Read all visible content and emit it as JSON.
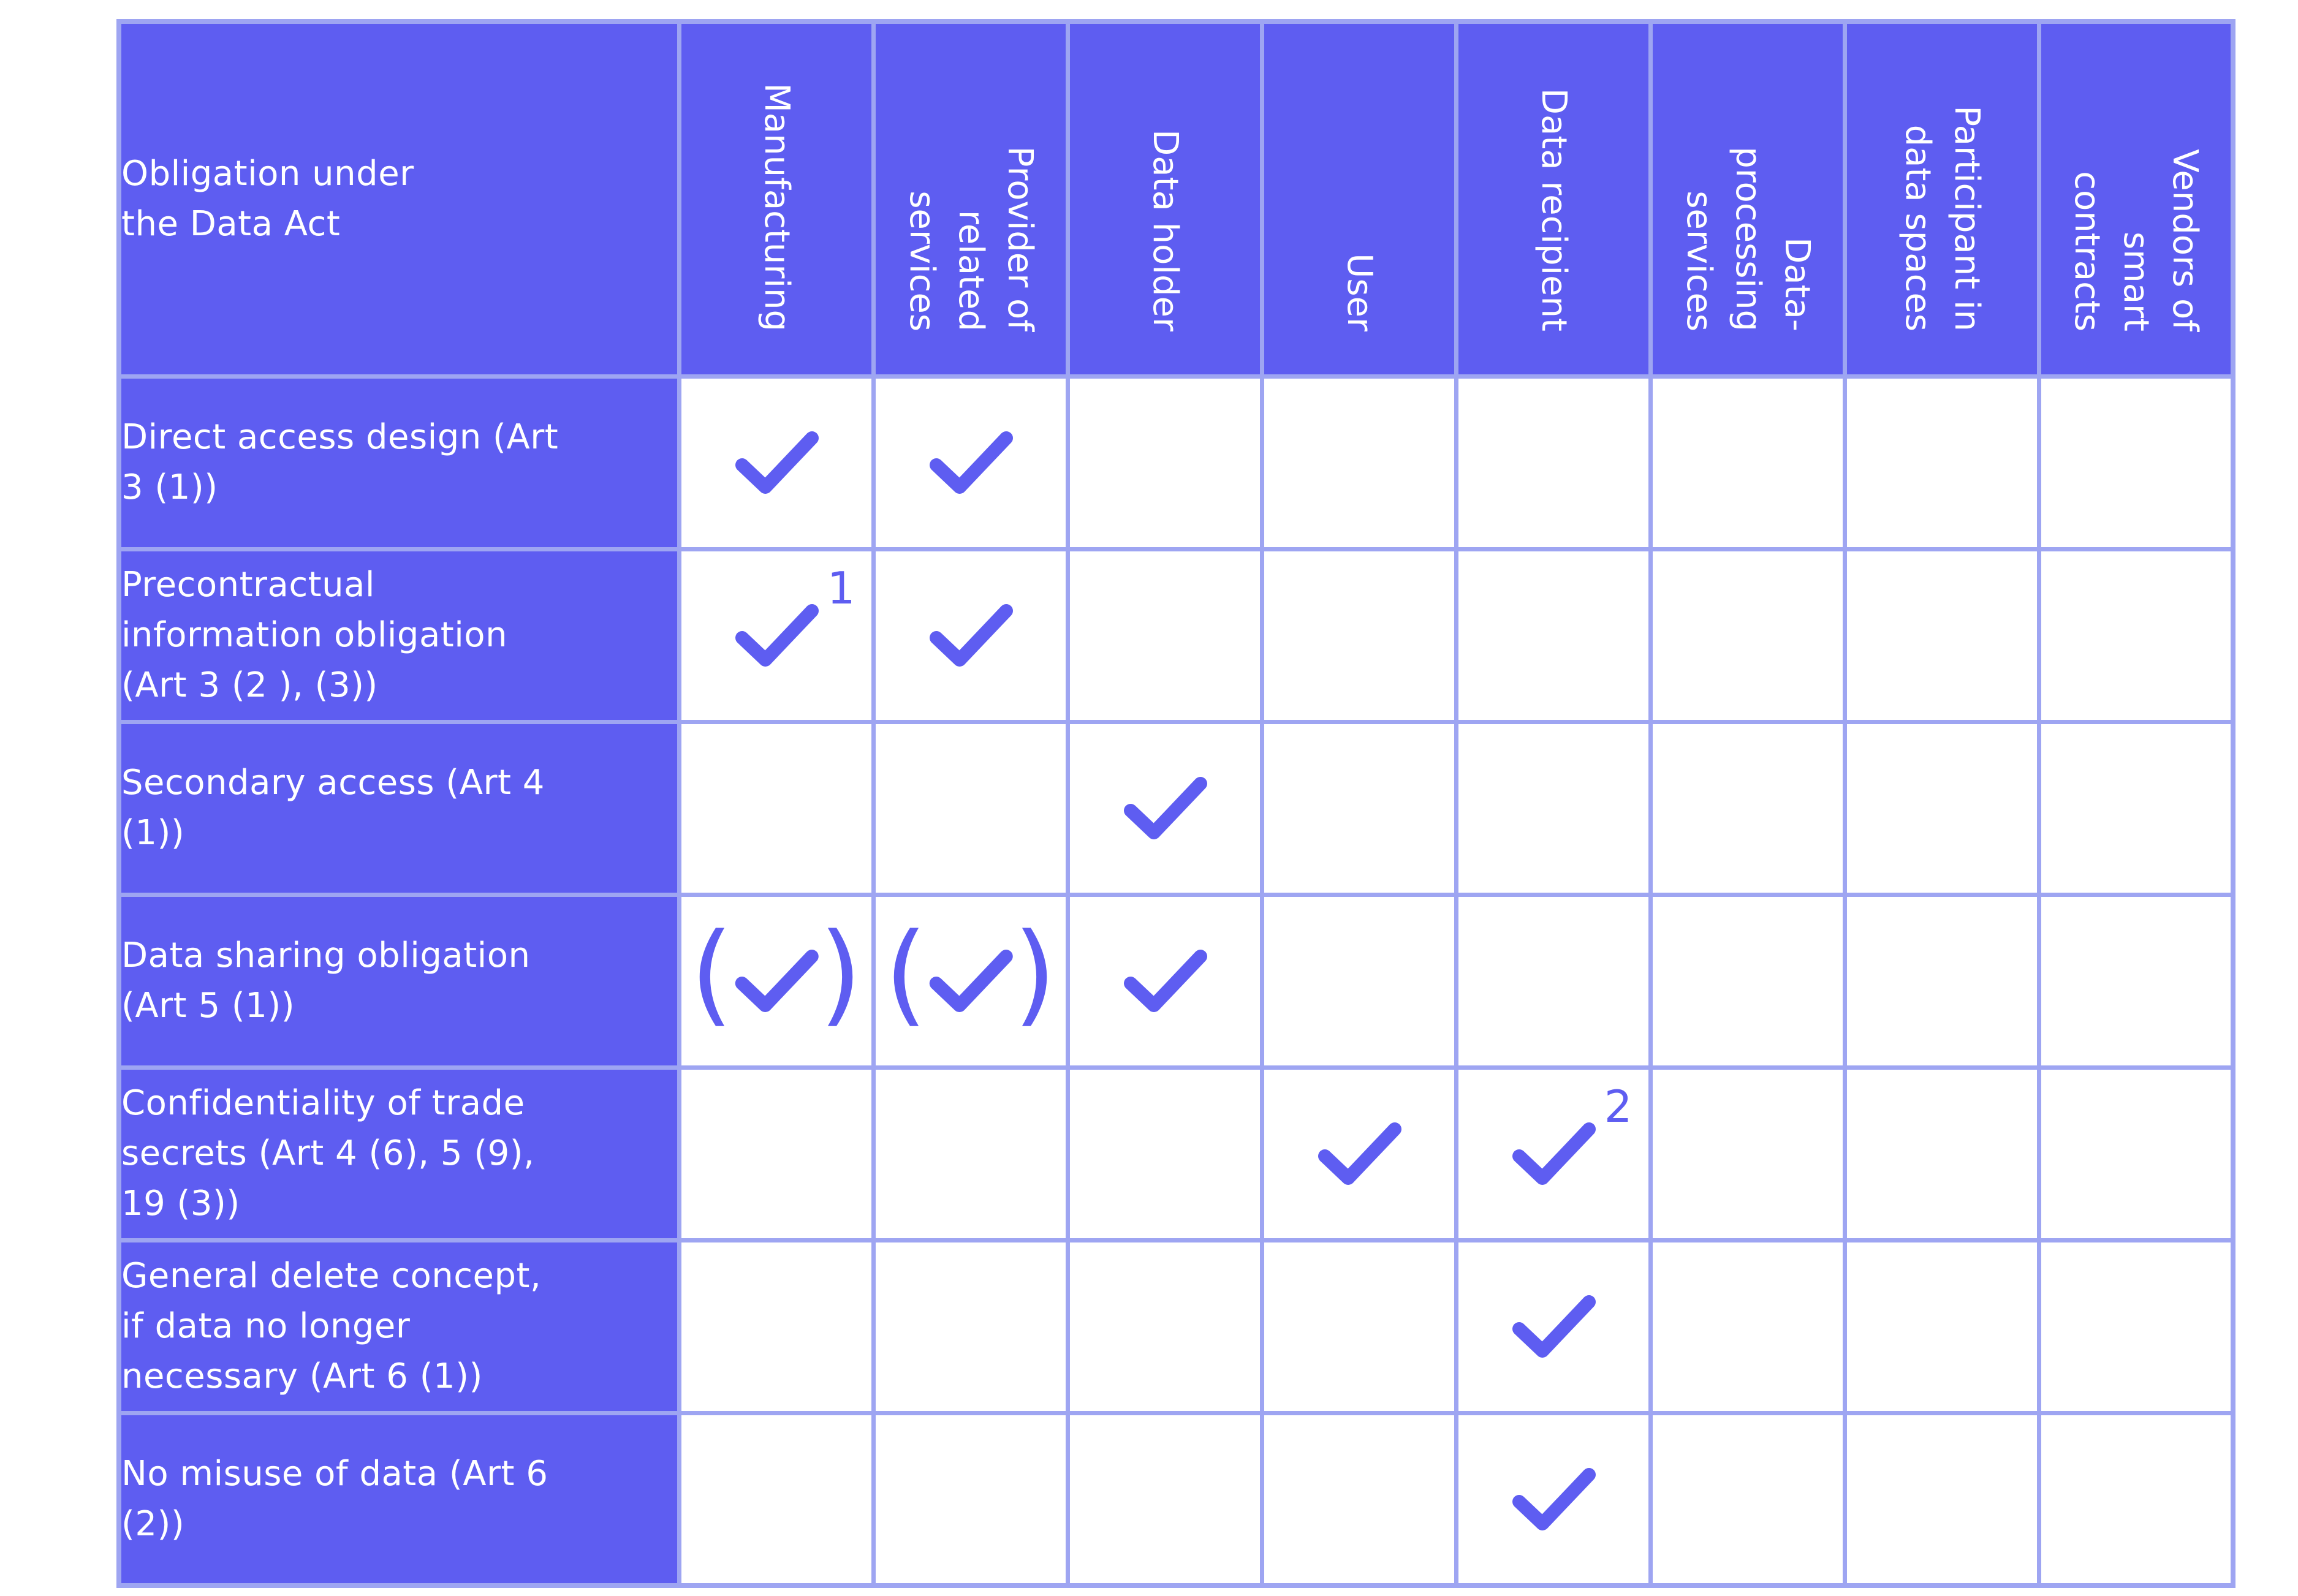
{
  "table": {
    "header_label": "Obligation under\nthe Data Act",
    "roles": [
      "Manufacturing",
      "Provider of\nrelated\nservices",
      "Data holder",
      "User",
      "Data recipient",
      "Data-\nprocessing\nservices",
      "Participant in\ndata spaces",
      "Vendors of\nsmart contracts"
    ],
    "rows": [
      {
        "label": "Direct access design (Art\n3 (1))",
        "marks": [
          "check",
          "check",
          "",
          "",
          "",
          "",
          "",
          ""
        ],
        "footnotes": [
          "",
          "",
          "",
          "",
          "",
          "",
          "",
          ""
        ]
      },
      {
        "label": "Precontractual\ninformation obligation\n(Art 3 (2 ), (3))",
        "marks": [
          "check",
          "check",
          "",
          "",
          "",
          "",
          "",
          ""
        ],
        "footnotes": [
          "1",
          "",
          "",
          "",
          "",
          "",
          "",
          ""
        ]
      },
      {
        "label": "Secondary access (Art 4\n(1))",
        "marks": [
          "",
          "",
          "check",
          "",
          "",
          "",
          "",
          ""
        ],
        "footnotes": [
          "",
          "",
          "",
          "",
          "",
          "",
          "",
          ""
        ]
      },
      {
        "label": "Data sharing obligation\n(Art 5 (1))",
        "marks": [
          "check-parenthesized",
          "check-parenthesized",
          "check",
          "",
          "",
          "",
          "",
          ""
        ],
        "footnotes": [
          "",
          "",
          "",
          "",
          "",
          "",
          "",
          ""
        ]
      },
      {
        "label": "Confidentiality of trade\nsecrets (Art 4 (6), 5 (9),\n19 (3))",
        "marks": [
          "",
          "",
          "",
          "check",
          "check",
          "",
          "",
          ""
        ],
        "footnotes": [
          "",
          "",
          "",
          "",
          "2",
          "",
          "",
          ""
        ]
      },
      {
        "label": "General delete concept,\nif data no longer\nnecessary (Art 6 (1))",
        "marks": [
          "",
          "",
          "",
          "",
          "check",
          "",
          "",
          ""
        ],
        "footnotes": [
          "",
          "",
          "",
          "",
          "",
          "",
          "",
          ""
        ]
      },
      {
        "label": "No misuse of data (Art 6\n(2))",
        "marks": [
          "",
          "",
          "",
          "",
          "check",
          "",
          "",
          ""
        ],
        "footnotes": [
          "",
          "",
          "",
          "",
          "",
          "",
          "",
          ""
        ]
      }
    ]
  },
  "icons": {
    "check": "checkmark-icon",
    "paren_left": "(",
    "paren_right": ")"
  },
  "colors": {
    "accent": "#5e5df1",
    "grid": "#9ea5f2",
    "cell_background": "#ffffff",
    "header_text": "#ffffff"
  }
}
